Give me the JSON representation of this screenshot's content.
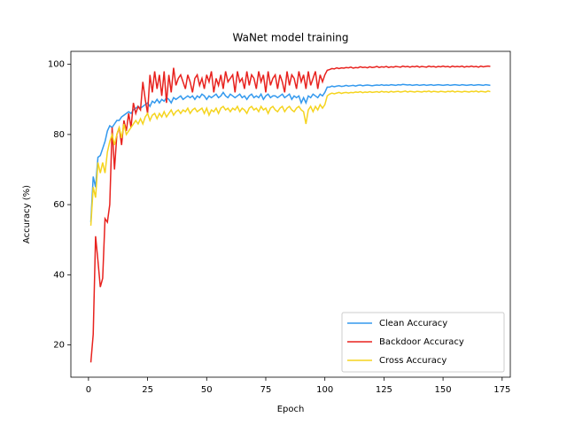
{
  "chart_data": {
    "type": "line",
    "title": "WaNet model training",
    "x_label": "Epoch",
    "y_label": "Accuracy (%)",
    "x": [
      1,
      2,
      3,
      4,
      5,
      6,
      7,
      8,
      9,
      10,
      11,
      12,
      13,
      14,
      15,
      16,
      17,
      18,
      19,
      20,
      21,
      22,
      23,
      24,
      25,
      26,
      27,
      28,
      29,
      30,
      31,
      32,
      33,
      34,
      35,
      36,
      37,
      38,
      39,
      40,
      41,
      42,
      43,
      44,
      45,
      46,
      47,
      48,
      49,
      50,
      51,
      52,
      53,
      54,
      55,
      56,
      57,
      58,
      59,
      60,
      61,
      62,
      63,
      64,
      65,
      66,
      67,
      68,
      69,
      70,
      71,
      72,
      73,
      74,
      75,
      76,
      77,
      78,
      79,
      80,
      81,
      82,
      83,
      84,
      85,
      86,
      87,
      88,
      89,
      90,
      91,
      92,
      93,
      94,
      95,
      96,
      97,
      98,
      99,
      100,
      101,
      102,
      103,
      104,
      105,
      106,
      107,
      108,
      109,
      110,
      111,
      112,
      113,
      114,
      115,
      116,
      117,
      118,
      119,
      120,
      121,
      122,
      123,
      124,
      125,
      126,
      127,
      128,
      129,
      130,
      131,
      132,
      133,
      134,
      135,
      136,
      137,
      138,
      139,
      140,
      141,
      142,
      143,
      144,
      145,
      146,
      147,
      148,
      149,
      150,
      151,
      152,
      153,
      154,
      155,
      156,
      157,
      158,
      159,
      160,
      161,
      162,
      163,
      164,
      165,
      166,
      167,
      168,
      169,
      170
    ],
    "series": [
      {
        "name": "Clean Accuracy",
        "color": "#3399ee",
        "values": [
          55,
          68,
          65,
          73.5,
          74,
          76,
          78,
          81,
          82.5,
          82,
          83,
          84,
          84,
          85,
          85.5,
          86,
          86.5,
          86,
          87,
          87.5,
          88,
          87.5,
          88,
          88.5,
          89,
          88,
          89.5,
          89,
          90,
          89,
          90,
          89.5,
          90.5,
          90,
          89,
          90.5,
          90,
          90.5,
          91,
          90,
          90.5,
          91,
          90.5,
          91,
          90,
          91,
          90.5,
          91.5,
          91,
          90,
          91,
          90.5,
          91,
          91.5,
          90.5,
          91,
          92,
          91,
          90.5,
          91.5,
          91,
          90.5,
          91,
          91.5,
          90.5,
          91,
          90,
          91,
          91.5,
          90.5,
          91,
          90.5,
          91.5,
          90,
          91,
          91.5,
          90.5,
          91,
          91,
          90.5,
          91,
          91.5,
          90.5,
          91,
          91.5,
          90,
          91,
          90.5,
          91,
          89,
          90.5,
          89,
          91,
          90.5,
          91.5,
          91,
          90.5,
          91.5,
          91,
          92,
          93.5,
          93.5,
          93.8,
          93.6,
          93.8,
          93.9,
          93.7,
          93.8,
          94,
          93.8,
          93.9,
          94,
          93.8,
          94,
          94.1,
          93.9,
          94,
          94.1,
          94,
          93.9,
          94,
          94.1,
          94,
          94.2,
          94,
          94.1,
          94,
          94.2,
          94.1,
          94,
          94.2,
          94.1,
          94.3,
          94.2,
          94.1,
          94.2,
          94,
          94.1,
          94.2,
          94,
          94.1,
          94.2,
          94,
          94.1,
          94.2,
          94,
          94.1,
          94.2,
          94.1,
          94,
          94.1,
          94.2,
          94,
          94.1,
          94.2,
          94.1,
          94,
          94.2,
          94.1,
          94,
          94.1,
          94.2,
          94,
          94.1,
          94.2,
          94.1,
          94,
          94.2,
          94.1,
          94
        ]
      },
      {
        "name": "Backdoor Accuracy",
        "color": "#e8221e",
        "values": [
          15,
          23,
          51,
          44,
          36.5,
          39,
          56,
          55,
          60,
          82,
          70,
          80,
          82,
          77,
          84,
          81,
          86,
          82,
          89,
          86,
          88,
          87,
          95,
          90,
          86,
          97,
          92,
          98,
          93,
          97,
          91,
          98,
          89,
          97,
          92,
          99,
          94,
          96,
          97,
          95,
          93,
          97,
          95,
          92,
          96,
          97,
          94,
          96,
          93,
          97,
          95,
          98,
          92,
          96,
          94,
          97,
          93,
          98,
          95,
          96,
          97,
          92,
          98,
          95,
          96,
          93,
          98,
          94,
          97,
          96,
          93,
          98,
          95,
          97,
          92,
          98,
          94,
          96,
          97,
          93,
          97,
          95,
          92,
          98,
          94,
          97,
          96,
          93,
          98,
          95,
          97,
          93,
          98,
          94,
          96,
          98,
          93,
          97,
          95,
          97,
          98.3,
          98.5,
          98.8,
          98.7,
          99,
          98.8,
          99,
          98.9,
          99.1,
          99,
          99.2,
          98.9,
          99.1,
          99,
          99.3,
          99.1,
          99.2,
          99,
          99.3,
          99.1,
          99.2,
          99.4,
          99.1,
          99.3,
          99.2,
          99.4,
          99.1,
          99.3,
          99.2,
          99.4,
          99.3,
          99.2,
          99.5,
          99.3,
          99.4,
          99.2,
          99.4,
          99.3,
          99.5,
          99.2,
          99.4,
          99.3,
          99.2,
          99.5,
          99.3,
          99.4,
          99.2,
          99.4,
          99.3,
          99.5,
          99.3,
          99.4,
          99.2,
          99.5,
          99.3,
          99.4,
          99.3,
          99.5,
          99.2,
          99.4,
          99.3,
          99.5,
          99.3,
          99.4,
          99.2,
          99.5,
          99.3,
          99.4,
          99.5,
          99.4
        ]
      },
      {
        "name": "Cross Accuracy",
        "color": "#f5d41f",
        "values": [
          54,
          65,
          62,
          72,
          69,
          72,
          69,
          75,
          78,
          80,
          77,
          80,
          82,
          79,
          83,
          80,
          81,
          82,
          83,
          84,
          83,
          84.5,
          83,
          85,
          86,
          84,
          85.5,
          86,
          84.5,
          86,
          85,
          86.5,
          85,
          86,
          87,
          85.5,
          86.5,
          87,
          86,
          87,
          86.5,
          87.5,
          86,
          87,
          87.5,
          86.5,
          87,
          87.5,
          86,
          87.5,
          85.5,
          87,
          86.5,
          87.5,
          86,
          87.5,
          88,
          87,
          87.5,
          86.5,
          87.5,
          87,
          88,
          86.5,
          87.5,
          87,
          86,
          87.5,
          88,
          87,
          87.5,
          86.5,
          88,
          87,
          87.5,
          86,
          87.5,
          88,
          87,
          86.5,
          87.5,
          88,
          86.5,
          87.5,
          88,
          87,
          86.5,
          87.5,
          88,
          87,
          86.5,
          83,
          87,
          88,
          86.5,
          88,
          87,
          88.5,
          87.5,
          88.5,
          91,
          91.5,
          91.8,
          91.6,
          91.8,
          92,
          91.7,
          91.9,
          92,
          91.8,
          92,
          91.9,
          92.1,
          92,
          92.2,
          91.9,
          92.1,
          92,
          92.2,
          92,
          92.1,
          92.2,
          92,
          92.3,
          92.1,
          92.2,
          92,
          92.3,
          92.1,
          92.2,
          92.3,
          92.1,
          92.2,
          92.4,
          92.1,
          92.3,
          92.2,
          92.1,
          92.3,
          92.2,
          92.1,
          92.3,
          92.2,
          92.4,
          92.1,
          92.3,
          92.2,
          92.1,
          92.3,
          92.2,
          92.1,
          92.3,
          92.2,
          92.4,
          92.1,
          92.3,
          92.2,
          92.1,
          92.3,
          92.2,
          92.1,
          92.3,
          92.2,
          92.4,
          92.1,
          92.3,
          92.2,
          92.1,
          92.4,
          92.2
        ]
      }
    ],
    "xlim": [
      -7.45,
      178.45
    ],
    "xticks": [
      0,
      25,
      50,
      75,
      100,
      125,
      150,
      175
    ],
    "ylim": [
      10.8,
      103.7
    ],
    "yticks": [
      20,
      40,
      60,
      80,
      100
    ],
    "legend": "lower right"
  }
}
